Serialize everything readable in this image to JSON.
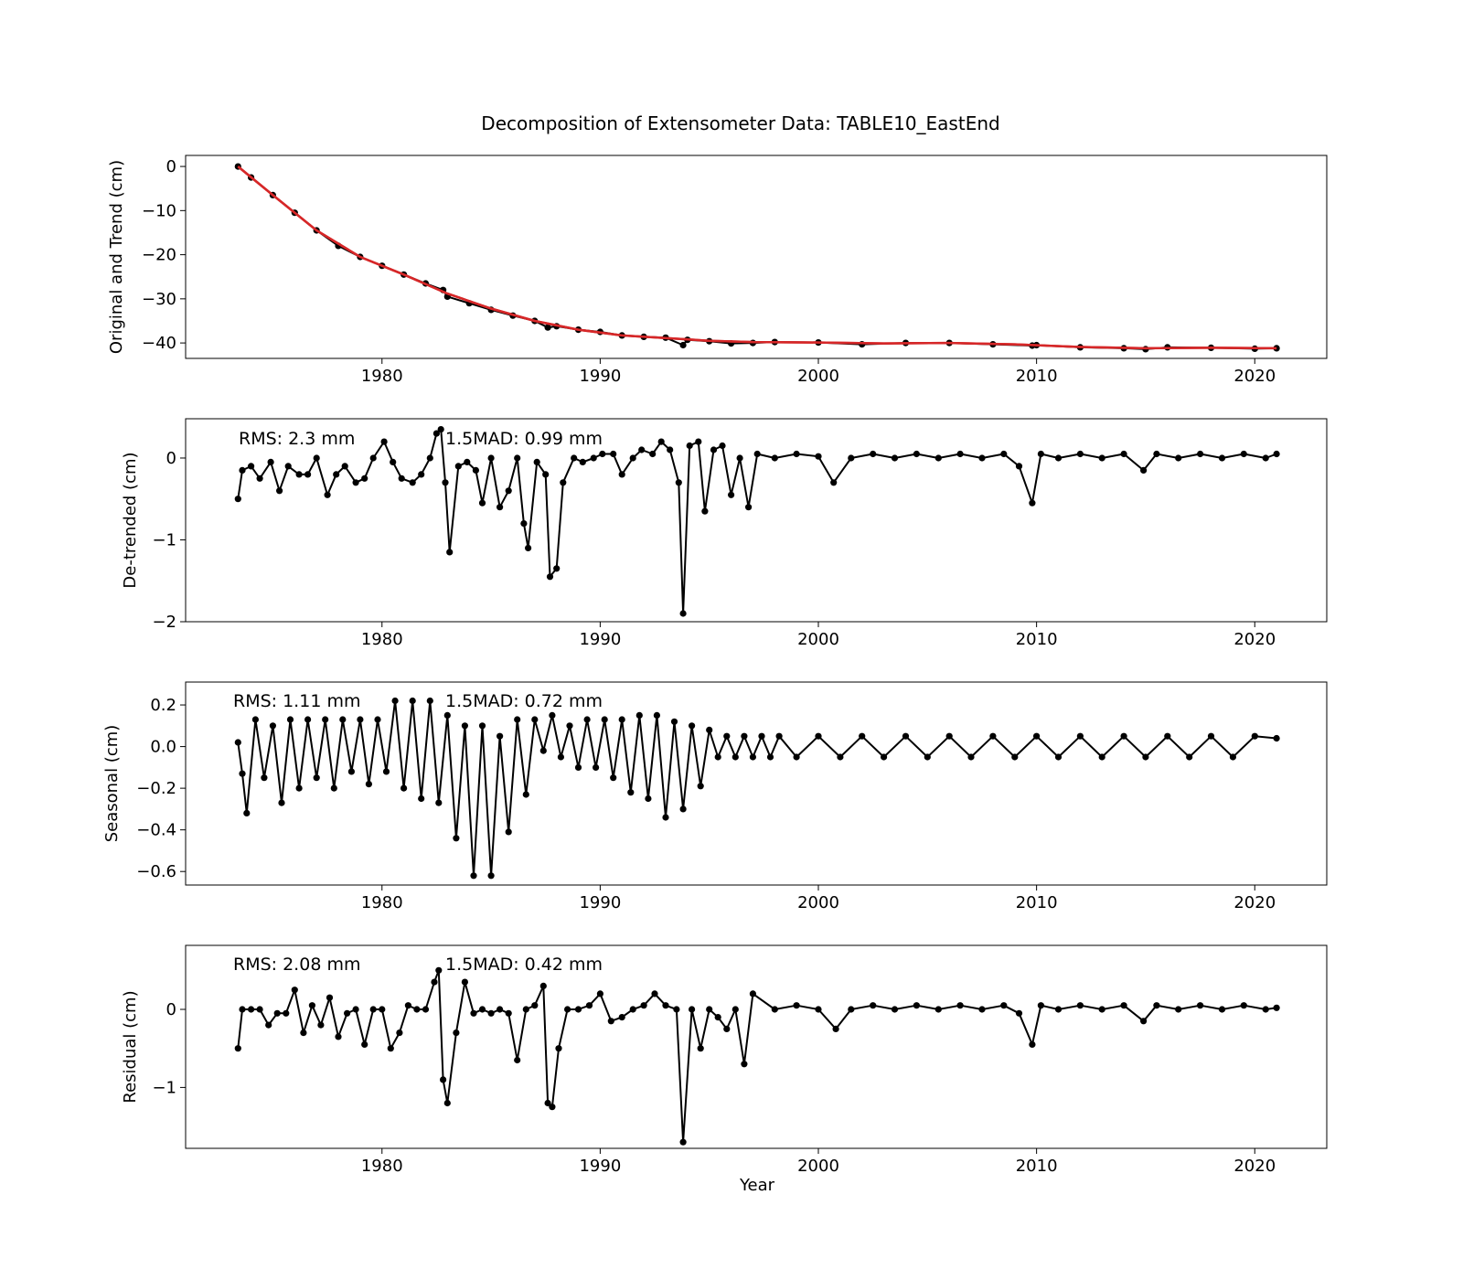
{
  "title": "Decomposition of Extensometer Data: TABLE10_EastEnd",
  "xlabel": "Year",
  "colors": {
    "points": "#000000",
    "trend": "#d62728"
  },
  "chart_data": [
    {
      "type": "scatter",
      "ylabel": "Original and Trend (cm)",
      "xlim": [
        1971.0,
        2023.3
      ],
      "ylim": [
        -43.5,
        2.5
      ],
      "xticks": [
        1980,
        1990,
        2000,
        2010,
        2020
      ],
      "yticks": [
        0,
        -10,
        -20,
        -30,
        -40
      ],
      "ytick_labels": [
        "0",
        "−10",
        "−20",
        "−30",
        "−40"
      ],
      "series": [
        {
          "name": "",
          "role": "original",
          "x": [
            1973.4,
            1974.0,
            1975.0,
            1976.0,
            1977.0,
            1978.0,
            1979.0,
            1980.0,
            1981.0,
            1982.0,
            1982.8,
            1983.0,
            1984.0,
            1985.0,
            1986.0,
            1987.0,
            1987.6,
            1988.0,
            1989.0,
            1990.0,
            1991.0,
            1992.0,
            1993.0,
            1993.8,
            1994.0,
            1995.0,
            1996.0,
            1997.0,
            1998.0,
            2000.0,
            2002.0,
            2004.0,
            2006.0,
            2008.0,
            2009.8,
            2010.0,
            2012.0,
            2014.0,
            2015.0,
            2016.0,
            2018.0,
            2020.0,
            2021.0
          ],
          "y": [
            0,
            -2.5,
            -6.5,
            -10.5,
            -14.5,
            -18.0,
            -20.5,
            -22.5,
            -24.5,
            -26.5,
            -28.0,
            -29.5,
            -31.0,
            -32.5,
            -33.8,
            -35.0,
            -36.5,
            -36.2,
            -37.0,
            -37.5,
            -38.3,
            -38.6,
            -38.8,
            -40.5,
            -39.3,
            -39.6,
            -40.1,
            -40.0,
            -39.8,
            -39.9,
            -40.3,
            -40.0,
            -40.0,
            -40.3,
            -40.6,
            -40.5,
            -41.0,
            -41.2,
            -41.4,
            -41.0,
            -41.1,
            -41.3,
            -41.2
          ]
        },
        {
          "name": "",
          "role": "trend",
          "x": [
            1973.4,
            1975.0,
            1977.0,
            1979.0,
            1981.0,
            1983.0,
            1985.0,
            1987.0,
            1989.0,
            1991.0,
            1993.0,
            1995.0,
            1997.0,
            2000.0,
            2003.0,
            2006.0,
            2009.0,
            2012.0,
            2015.0,
            2018.0,
            2021.0
          ],
          "y": [
            0,
            -6.5,
            -14.5,
            -20.5,
            -24.5,
            -28.8,
            -32.2,
            -35.0,
            -37.0,
            -38.3,
            -38.9,
            -39.5,
            -39.8,
            -39.9,
            -40.1,
            -40.0,
            -40.3,
            -40.9,
            -41.2,
            -41.1,
            -41.2
          ]
        }
      ]
    },
    {
      "type": "line",
      "ylabel": "De-trended (cm)",
      "xlim": [
        1971.0,
        2023.3
      ],
      "ylim": [
        -2.0,
        0.48
      ],
      "xticks": [
        1980,
        1990,
        2000,
        2010,
        2020
      ],
      "yticks": [
        0,
        -1,
        -2
      ],
      "ytick_labels": [
        "0",
        "−1",
        "−2"
      ],
      "annotations": [
        "RMS: 2.3 mm",
        "1.5MAD: 0.99 mm"
      ],
      "series": [
        {
          "name": "",
          "x": [
            1973.4,
            1973.6,
            1974.0,
            1974.4,
            1974.9,
            1975.3,
            1975.7,
            1976.2,
            1976.6,
            1977.0,
            1977.5,
            1977.9,
            1978.3,
            1978.8,
            1979.2,
            1979.6,
            1980.1,
            1980.5,
            1980.9,
            1981.4,
            1981.8,
            1982.2,
            1982.5,
            1982.7,
            1982.9,
            1983.1,
            1983.5,
            1983.9,
            1984.3,
            1984.6,
            1985.0,
            1985.4,
            1985.8,
            1986.2,
            1986.5,
            1986.7,
            1987.1,
            1987.5,
            1987.7,
            1988.0,
            1988.3,
            1988.8,
            1989.2,
            1989.7,
            1990.1,
            1990.6,
            1991.0,
            1991.5,
            1991.9,
            1992.4,
            1992.8,
            1993.2,
            1993.6,
            1993.8,
            1994.1,
            1994.5,
            1994.8,
            1995.2,
            1995.6,
            1996.0,
            1996.4,
            1996.8,
            1997.2,
            1998.0,
            1999.0,
            2000.0,
            2000.7,
            2001.5,
            2002.5,
            2003.5,
            2004.5,
            2005.5,
            2006.5,
            2007.5,
            2008.5,
            2009.2,
            2009.8,
            2010.2,
            2011.0,
            2012.0,
            2013.0,
            2014.0,
            2014.9,
            2015.5,
            2016.5,
            2017.5,
            2018.5,
            2019.5,
            2020.5,
            2021.0
          ],
          "y": [
            -0.5,
            -0.15,
            -0.1,
            -0.25,
            -0.05,
            -0.4,
            -0.1,
            -0.2,
            -0.2,
            0.0,
            -0.45,
            -0.2,
            -0.1,
            -0.3,
            -0.25,
            0.0,
            0.2,
            -0.05,
            -0.25,
            -0.3,
            -0.2,
            0.0,
            0.3,
            0.35,
            -0.3,
            -1.15,
            -0.1,
            -0.05,
            -0.15,
            -0.55,
            0.0,
            -0.6,
            -0.4,
            0.0,
            -0.8,
            -1.1,
            -0.05,
            -0.2,
            -1.45,
            -1.35,
            -0.3,
            0.0,
            -0.05,
            0.0,
            0.05,
            0.05,
            -0.2,
            0.0,
            0.1,
            0.05,
            0.2,
            0.1,
            -0.3,
            -1.9,
            0.15,
            0.2,
            -0.65,
            0.1,
            0.15,
            -0.45,
            0.0,
            -0.6,
            0.05,
            0.0,
            0.05,
            0.02,
            -0.3,
            0.0,
            0.05,
            0.0,
            0.05,
            0.0,
            0.05,
            0.0,
            0.05,
            -0.1,
            -0.55,
            0.05,
            0.0,
            0.05,
            0.0,
            0.05,
            -0.15,
            0.05,
            0.0,
            0.05,
            0.0,
            0.05,
            0.0,
            0.05
          ]
        }
      ]
    },
    {
      "type": "line",
      "ylabel": "Seasonal (cm)",
      "xlim": [
        1971.0,
        2023.3
      ],
      "ylim": [
        -0.665,
        0.31
      ],
      "xticks": [
        1980,
        1990,
        2000,
        2010,
        2020
      ],
      "yticks": [
        0.2,
        0.0,
        -0.2,
        -0.4,
        -0.6
      ],
      "ytick_labels": [
        "0.2",
        "0.0",
        "−0.2",
        "−0.4",
        "−0.6"
      ],
      "annotations": [
        "RMS: 1.11 mm",
        "1.5MAD: 0.72 mm"
      ],
      "series": [
        {
          "name": "",
          "x": [
            1973.4,
            1973.6,
            1973.8,
            1974.2,
            1974.6,
            1975.0,
            1975.4,
            1975.8,
            1976.2,
            1976.6,
            1977.0,
            1977.4,
            1977.8,
            1978.2,
            1978.6,
            1979.0,
            1979.4,
            1979.8,
            1980.2,
            1980.6,
            1981.0,
            1981.4,
            1981.8,
            1982.2,
            1982.6,
            1983.0,
            1983.4,
            1983.8,
            1984.2,
            1984.6,
            1985.0,
            1985.4,
            1985.8,
            1986.2,
            1986.6,
            1987.0,
            1987.4,
            1987.8,
            1988.2,
            1988.6,
            1989.0,
            1989.4,
            1989.8,
            1990.2,
            1990.6,
            1991.0,
            1991.4,
            1991.8,
            1992.2,
            1992.6,
            1993.0,
            1993.4,
            1993.8,
            1994.2,
            1994.6,
            1995.0,
            1995.4,
            1995.8,
            1996.2,
            1996.6,
            1997.0,
            1997.4,
            1997.8,
            1998.2,
            1999.0,
            2000.0,
            2001.0,
            2002.0,
            2003.0,
            2004.0,
            2005.0,
            2006.0,
            2007.0,
            2008.0,
            2009.0,
            2010.0,
            2011.0,
            2012.0,
            2013.0,
            2014.0,
            2015.0,
            2016.0,
            2017.0,
            2018.0,
            2019.0,
            2020.0,
            2021.0
          ],
          "y": [
            0.02,
            -0.13,
            -0.32,
            0.13,
            -0.15,
            0.1,
            -0.27,
            0.13,
            -0.2,
            0.13,
            -0.15,
            0.13,
            -0.2,
            0.13,
            -0.12,
            0.13,
            -0.18,
            0.13,
            -0.12,
            0.22,
            -0.2,
            0.22,
            -0.25,
            0.22,
            -0.27,
            0.15,
            -0.44,
            0.1,
            -0.62,
            0.1,
            -0.62,
            0.05,
            -0.41,
            0.13,
            -0.23,
            0.13,
            -0.02,
            0.15,
            -0.05,
            0.1,
            -0.1,
            0.13,
            -0.1,
            0.13,
            -0.15,
            0.13,
            -0.22,
            0.15,
            -0.25,
            0.15,
            -0.34,
            0.12,
            -0.3,
            0.1,
            -0.19,
            0.08,
            -0.05,
            0.05,
            -0.05,
            0.05,
            -0.05,
            0.05,
            -0.05,
            0.05,
            -0.05,
            0.05,
            -0.05,
            0.05,
            -0.05,
            0.05,
            -0.05,
            0.05,
            -0.05,
            0.05,
            -0.05,
            0.05,
            -0.05,
            0.05,
            -0.05,
            0.05,
            -0.05,
            0.05,
            -0.05,
            0.05,
            -0.05,
            0.05,
            0.04
          ]
        }
      ]
    },
    {
      "type": "line",
      "ylabel": "Residual (cm)",
      "xlim": [
        1971.0,
        2023.3
      ],
      "ylim": [
        -1.78,
        0.82
      ],
      "xticks": [
        1980,
        1990,
        2000,
        2010,
        2020
      ],
      "yticks": [
        0,
        -1
      ],
      "ytick_labels": [
        "0",
        "−1"
      ],
      "annotations": [
        "RMS: 2.08 mm",
        "1.5MAD: 0.42 mm"
      ],
      "series": [
        {
          "name": "",
          "x": [
            1973.4,
            1973.6,
            1974.0,
            1974.4,
            1974.8,
            1975.2,
            1975.6,
            1976.0,
            1976.4,
            1976.8,
            1977.2,
            1977.6,
            1978.0,
            1978.4,
            1978.8,
            1979.2,
            1979.6,
            1980.0,
            1980.4,
            1980.8,
            1981.2,
            1981.6,
            1982.0,
            1982.4,
            1982.6,
            1982.8,
            1983.0,
            1983.4,
            1983.8,
            1984.2,
            1984.6,
            1985.0,
            1985.4,
            1985.8,
            1986.2,
            1986.6,
            1987.0,
            1987.4,
            1987.6,
            1987.8,
            1988.1,
            1988.5,
            1989.0,
            1989.5,
            1990.0,
            1990.5,
            1991.0,
            1991.5,
            1992.0,
            1992.5,
            1993.0,
            1993.5,
            1993.8,
            1994.2,
            1994.6,
            1995.0,
            1995.4,
            1995.8,
            1996.2,
            1996.6,
            1997.0,
            1998.0,
            1999.0,
            2000.0,
            2000.8,
            2001.5,
            2002.5,
            2003.5,
            2004.5,
            2005.5,
            2006.5,
            2007.5,
            2008.5,
            2009.2,
            2009.8,
            2010.2,
            2011.0,
            2012.0,
            2013.0,
            2014.0,
            2014.9,
            2015.5,
            2016.5,
            2017.5,
            2018.5,
            2019.5,
            2020.5,
            2021.0
          ],
          "y": [
            -0.5,
            0.0,
            0.0,
            0.0,
            -0.2,
            -0.05,
            -0.05,
            0.25,
            -0.3,
            0.05,
            -0.2,
            0.15,
            -0.35,
            -0.05,
            0.0,
            -0.45,
            0.0,
            0.0,
            -0.5,
            -0.3,
            0.05,
            0.0,
            0.0,
            0.35,
            0.5,
            -0.9,
            -1.2,
            -0.3,
            0.35,
            -0.05,
            0.0,
            -0.05,
            0.0,
            -0.05,
            -0.65,
            0.0,
            0.05,
            0.3,
            -1.2,
            -1.25,
            -0.5,
            0.0,
            0.0,
            0.05,
            0.2,
            -0.15,
            -0.1,
            0.0,
            0.05,
            0.2,
            0.05,
            0.0,
            -1.7,
            0.0,
            -0.5,
            0.0,
            -0.1,
            -0.25,
            0.0,
            -0.7,
            0.2,
            0.0,
            0.05,
            0.0,
            -0.25,
            0.0,
            0.05,
            0.0,
            0.05,
            0.0,
            0.05,
            0.0,
            0.05,
            -0.05,
            -0.45,
            0.05,
            0.0,
            0.05,
            0.0,
            0.05,
            -0.15,
            0.05,
            0.0,
            0.05,
            0.0,
            0.05,
            0.0,
            0.02
          ]
        }
      ]
    }
  ]
}
